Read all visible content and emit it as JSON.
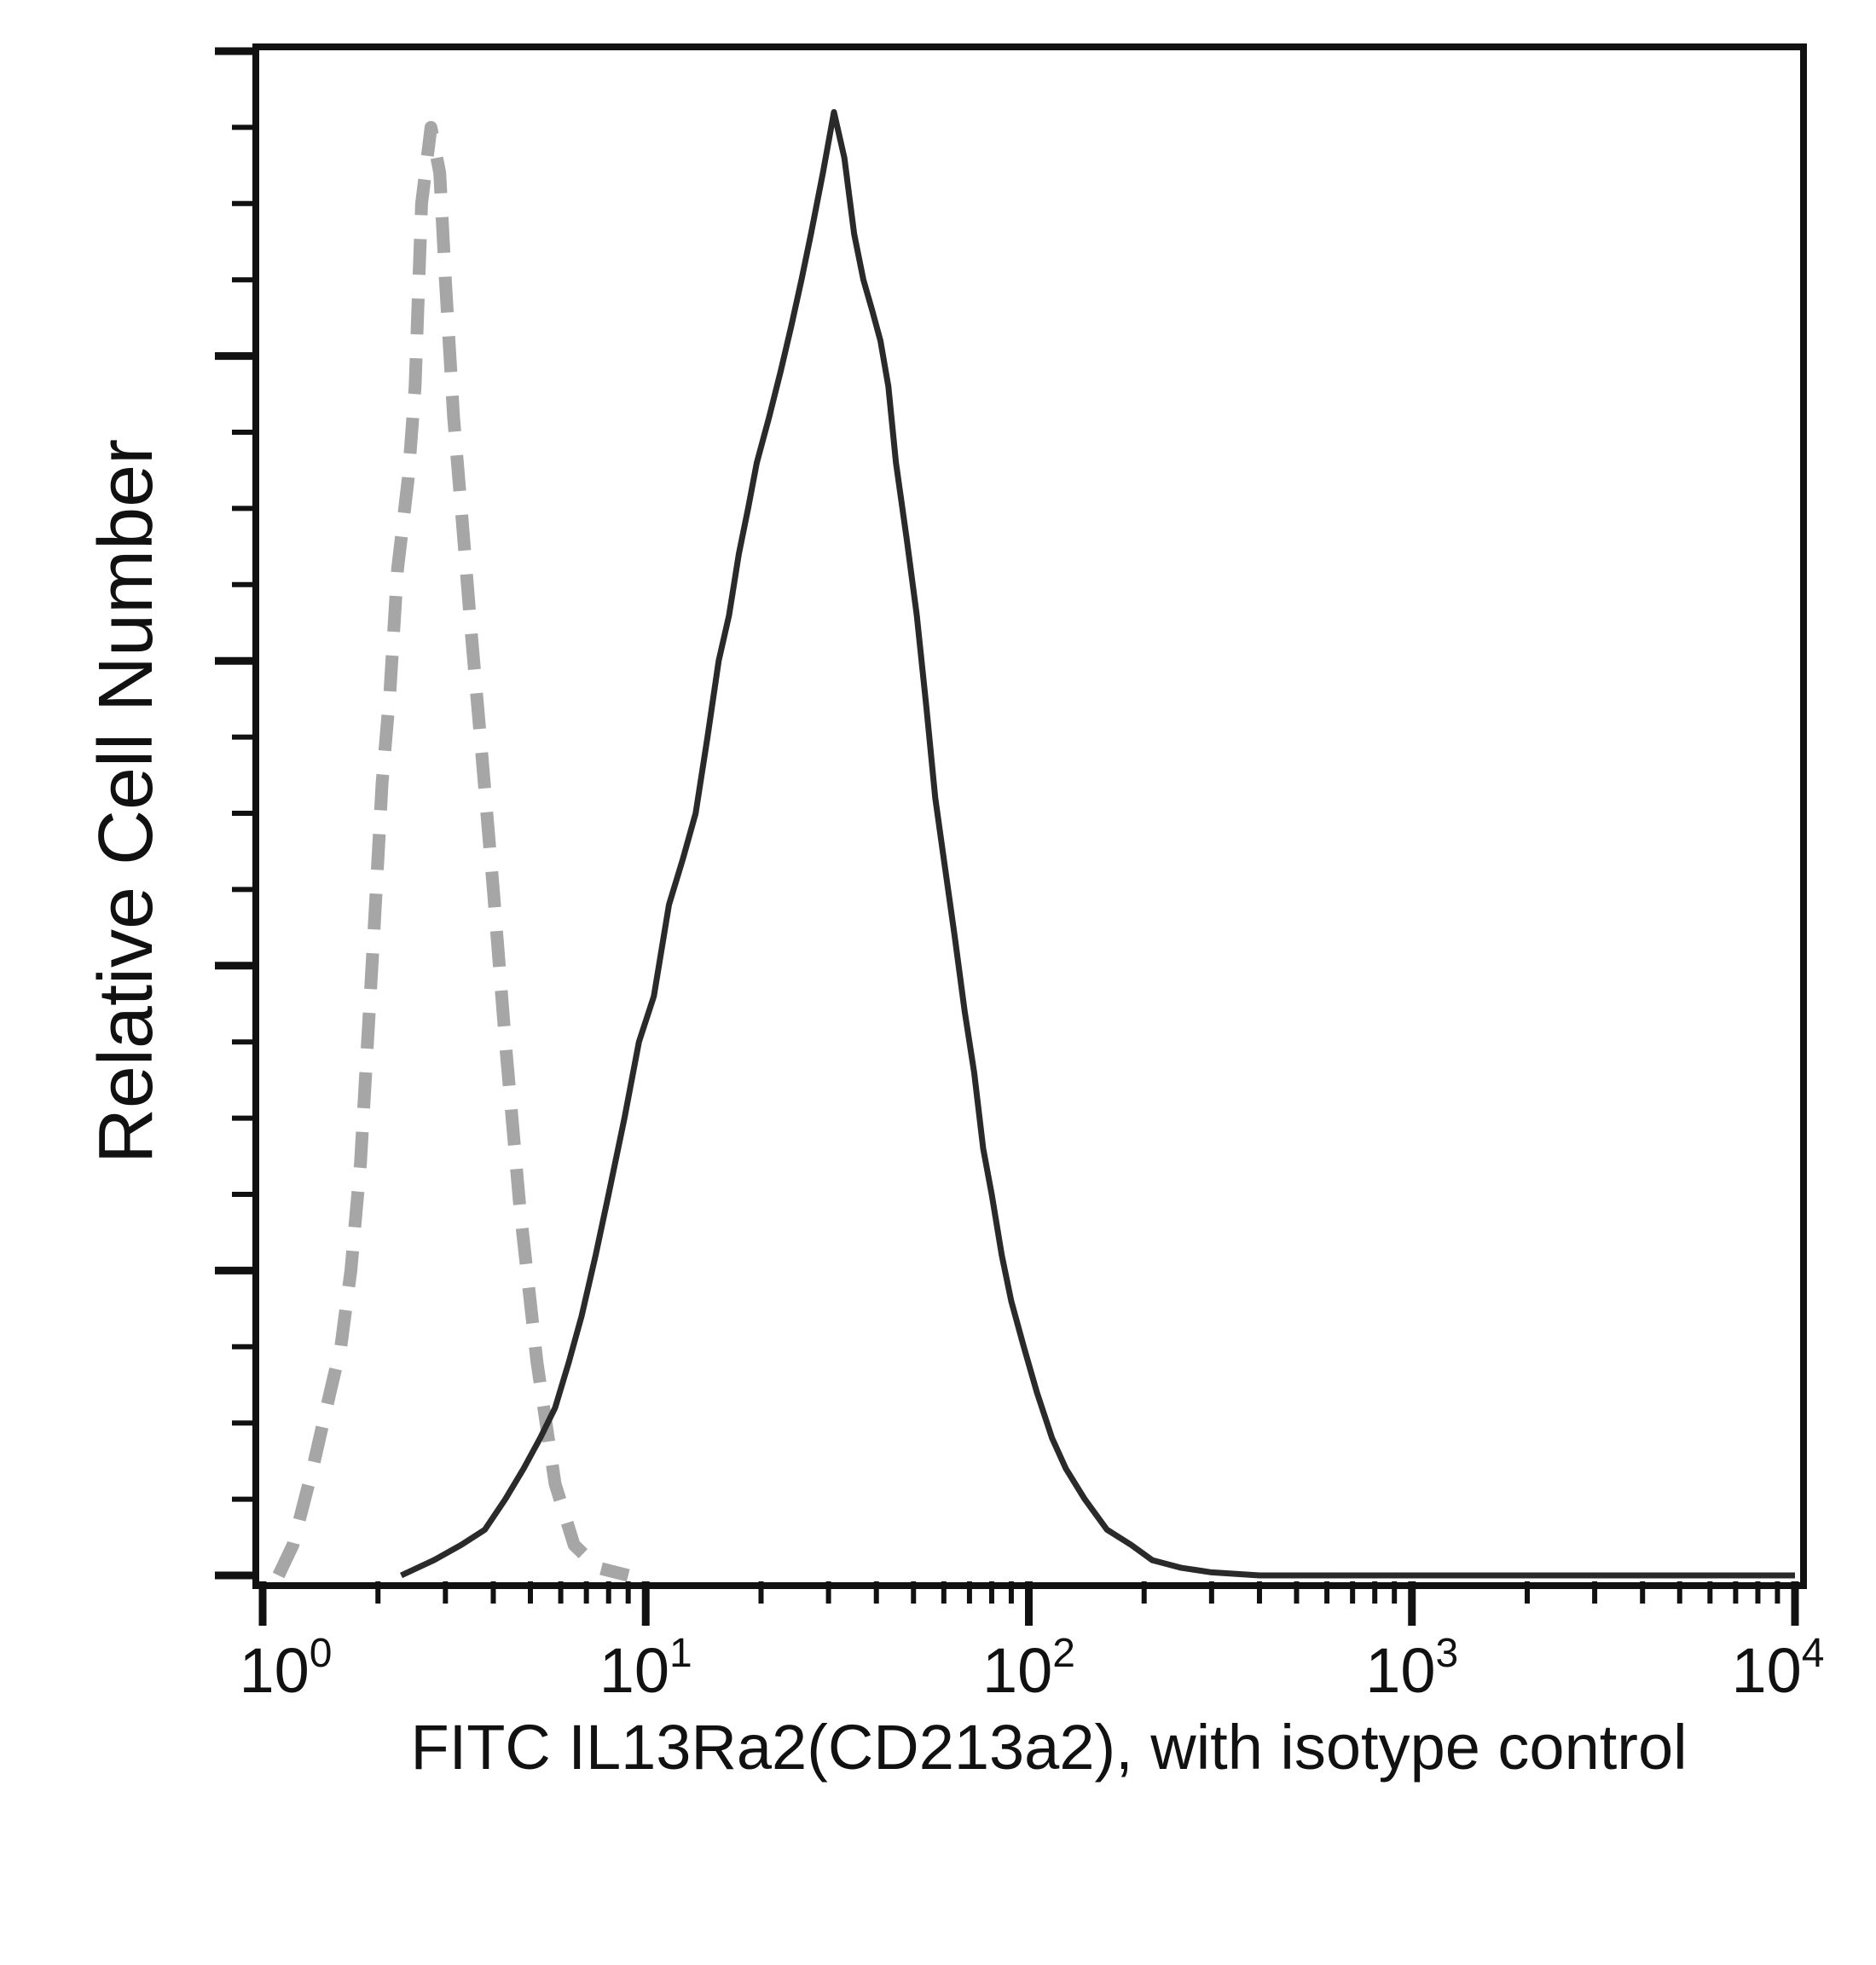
{
  "chart_data": {
    "type": "area",
    "title": "",
    "xlabel": "FITC IL13Ra2(CD213a2), with isotype control",
    "ylabel": "Relative Cell Number",
    "x_scale": "log",
    "xlim": [
      1,
      10000
    ],
    "ylim": [
      0,
      100
    ],
    "x_ticks": [
      {
        "value": 1,
        "base": "10",
        "exp": "0"
      },
      {
        "value": 10,
        "base": "10",
        "exp": "1"
      },
      {
        "value": 100,
        "base": "10",
        "exp": "2"
      },
      {
        "value": 1000,
        "base": "10",
        "exp": "3"
      },
      {
        "value": 10000,
        "base": "10",
        "exp": "4"
      }
    ],
    "y_major_ticks": [
      0,
      20,
      40,
      60,
      80,
      100
    ],
    "y_minor_step": 5,
    "grid": false,
    "legend": "none",
    "series": [
      {
        "role": "isotype control",
        "style": "dashed",
        "color": "#a6a6a6",
        "points": [
          [
            1.1,
            0
          ],
          [
            1.2,
            2
          ],
          [
            1.35,
            7
          ],
          [
            1.5,
            12
          ],
          [
            1.6,
            15
          ],
          [
            1.7,
            20
          ],
          [
            1.8,
            27
          ],
          [
            1.95,
            42
          ],
          [
            2.05,
            52
          ],
          [
            2.15,
            58
          ],
          [
            2.25,
            66
          ],
          [
            2.4,
            72
          ],
          [
            2.5,
            78
          ],
          [
            2.6,
            90
          ],
          [
            2.75,
            95
          ],
          [
            2.9,
            92
          ],
          [
            3.0,
            85
          ],
          [
            3.15,
            76
          ],
          [
            3.3,
            70
          ],
          [
            3.5,
            62
          ],
          [
            3.7,
            55
          ],
          [
            4.0,
            45
          ],
          [
            4.3,
            35
          ],
          [
            4.7,
            24
          ],
          [
            5.2,
            14
          ],
          [
            5.8,
            6
          ],
          [
            6.5,
            2
          ],
          [
            7.5,
            0.5
          ],
          [
            9,
            0
          ]
        ]
      },
      {
        "role": "FITC IL13Ra2(CD213a2)",
        "style": "solid",
        "color": "#2a2a2a",
        "points": [
          [
            2.3,
            0
          ],
          [
            2.8,
            1
          ],
          [
            3.3,
            2
          ],
          [
            3.8,
            3
          ],
          [
            4.3,
            5
          ],
          [
            4.8,
            7
          ],
          [
            5.3,
            9
          ],
          [
            5.8,
            11
          ],
          [
            6.3,
            14
          ],
          [
            6.8,
            17
          ],
          [
            7.4,
            21
          ],
          [
            8.0,
            25
          ],
          [
            8.8,
            30
          ],
          [
            9.6,
            35
          ],
          [
            10.5,
            38
          ],
          [
            11.5,
            44
          ],
          [
            12.5,
            47
          ],
          [
            13.5,
            50
          ],
          [
            14.5,
            55
          ],
          [
            15.5,
            60
          ],
          [
            16.5,
            63
          ],
          [
            17.5,
            67
          ],
          [
            18.5,
            70
          ],
          [
            19.5,
            73
          ],
          [
            21,
            76
          ],
          [
            22.5,
            79
          ],
          [
            24,
            82
          ],
          [
            25.5,
            85
          ],
          [
            27,
            88
          ],
          [
            29,
            92
          ],
          [
            31,
            96
          ],
          [
            33,
            93
          ],
          [
            35,
            88
          ],
          [
            37,
            85
          ],
          [
            39,
            83
          ],
          [
            41,
            81
          ],
          [
            43,
            78
          ],
          [
            45,
            73
          ],
          [
            48,
            68
          ],
          [
            51,
            63
          ],
          [
            54,
            57
          ],
          [
            57,
            51
          ],
          [
            60,
            47
          ],
          [
            64,
            42
          ],
          [
            68,
            37
          ],
          [
            72,
            33
          ],
          [
            76,
            28
          ],
          [
            80,
            25
          ],
          [
            85,
            21
          ],
          [
            90,
            18
          ],
          [
            97,
            15
          ],
          [
            105,
            12
          ],
          [
            115,
            9
          ],
          [
            125,
            7
          ],
          [
            140,
            5
          ],
          [
            160,
            3
          ],
          [
            185,
            2
          ],
          [
            210,
            1
          ],
          [
            250,
            0.5
          ],
          [
            300,
            0.2
          ],
          [
            400,
            0
          ],
          [
            10000,
            0
          ]
        ]
      }
    ]
  }
}
